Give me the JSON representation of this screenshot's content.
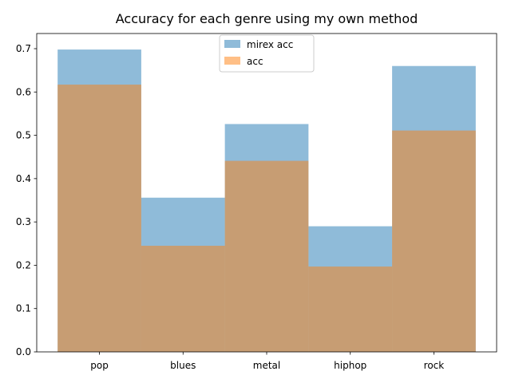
{
  "chart_data": {
    "type": "bar",
    "title": "Accuracy for each genre using my own method",
    "xlabel": "",
    "ylabel": "",
    "categories": [
      "pop",
      "blues",
      "metal",
      "hiphop",
      "rock"
    ],
    "series": [
      {
        "name": "mirex acc",
        "values": [
          0.698,
          0.356,
          0.526,
          0.29,
          0.66
        ],
        "color": "#1f77b4",
        "alpha": 0.5
      },
      {
        "name": "acc",
        "values": [
          0.617,
          0.245,
          0.441,
          0.197,
          0.511
        ],
        "color": "#ff7f0e",
        "alpha": 0.5
      }
    ],
    "ylim": [
      0,
      0.735
    ],
    "yticks": [
      "0.0",
      "0.1",
      "0.2",
      "0.3",
      "0.4",
      "0.5",
      "0.6",
      "0.7"
    ],
    "grid": false,
    "legend_position": "top-center",
    "bar_width": 1.0,
    "overlay": true
  }
}
